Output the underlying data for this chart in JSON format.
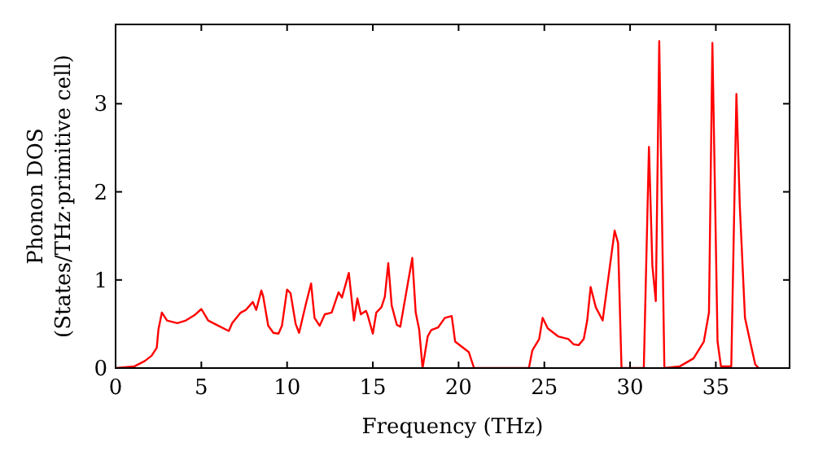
{
  "chart_data": {
    "type": "line",
    "xlabel": "Frequency (THz)",
    "ylabel": "Phonon DOS\n(States/THz·primitive cell)",
    "xlim": [
      0,
      39.3
    ],
    "ylim": [
      0,
      3.9
    ],
    "xticks": [
      0,
      5,
      10,
      15,
      20,
      25,
      30,
      35
    ],
    "yticks": [
      0,
      1,
      2,
      3
    ],
    "grid": false,
    "marker": "none",
    "line_style": "solid",
    "series": [
      {
        "color": "#ff0000",
        "x": [
          0,
          1.1,
          1.7,
          2.1,
          2.4,
          2.5,
          2.7,
          3.0,
          3.6,
          4.1,
          4.6,
          5.0,
          5.4,
          6.0,
          6.6,
          6.8,
          7.3,
          7.6,
          8.0,
          8.2,
          8.5,
          8.6,
          8.9,
          9.2,
          9.5,
          9.7,
          10.0,
          10.2,
          10.5,
          10.7,
          11.1,
          11.4,
          11.6,
          11.9,
          12.2,
          12.6,
          13.0,
          13.2,
          13.6,
          13.9,
          14.1,
          14.3,
          14.6,
          14.7,
          15.0,
          15.2,
          15.5,
          15.7,
          15.9,
          16.1,
          16.4,
          16.6,
          17.3,
          17.5,
          17.7,
          17.9,
          18.2,
          18.4,
          18.8,
          19.2,
          19.6,
          19.8,
          20.2,
          20.6,
          20.9,
          24.1,
          24.3,
          24.7,
          24.9,
          25.2,
          25.8,
          26.4,
          26.7,
          27.0,
          27.3,
          27.5,
          27.7,
          28.0,
          28.4,
          29.1,
          29.3,
          29.5,
          30.8,
          31.1,
          31.3,
          31.5,
          31.7,
          32.0,
          32.9,
          33.7,
          34.3,
          34.6,
          34.8,
          35.1,
          35.3,
          35.9,
          36.2,
          36.4,
          36.7,
          37.0,
          37.3,
          37.5
        ],
        "values": [
          0,
          0.02,
          0.08,
          0.14,
          0.23,
          0.44,
          0.63,
          0.54,
          0.51,
          0.54,
          0.6,
          0.67,
          0.54,
          0.48,
          0.42,
          0.51,
          0.63,
          0.66,
          0.75,
          0.66,
          0.88,
          0.82,
          0.48,
          0.4,
          0.39,
          0.48,
          0.89,
          0.85,
          0.5,
          0.4,
          0.73,
          0.96,
          0.57,
          0.48,
          0.61,
          0.63,
          0.86,
          0.8,
          1.08,
          0.54,
          0.79,
          0.61,
          0.65,
          0.6,
          0.39,
          0.63,
          0.69,
          0.81,
          1.19,
          0.71,
          0.49,
          0.47,
          1.25,
          0.63,
          0.44,
          0,
          0.36,
          0.43,
          0.46,
          0.57,
          0.59,
          0.3,
          0.24,
          0.18,
          0,
          0,
          0.2,
          0.33,
          0.57,
          0.45,
          0.36,
          0.33,
          0.27,
          0.26,
          0.33,
          0.54,
          0.92,
          0.69,
          0.54,
          1.56,
          1.42,
          0,
          0,
          2.51,
          1.16,
          0.76,
          3.71,
          0,
          0.02,
          0.11,
          0.3,
          0.63,
          3.69,
          0.3,
          0.02,
          0.02,
          3.11,
          1.83,
          0.57,
          0.3,
          0.04,
          0
        ]
      }
    ]
  }
}
